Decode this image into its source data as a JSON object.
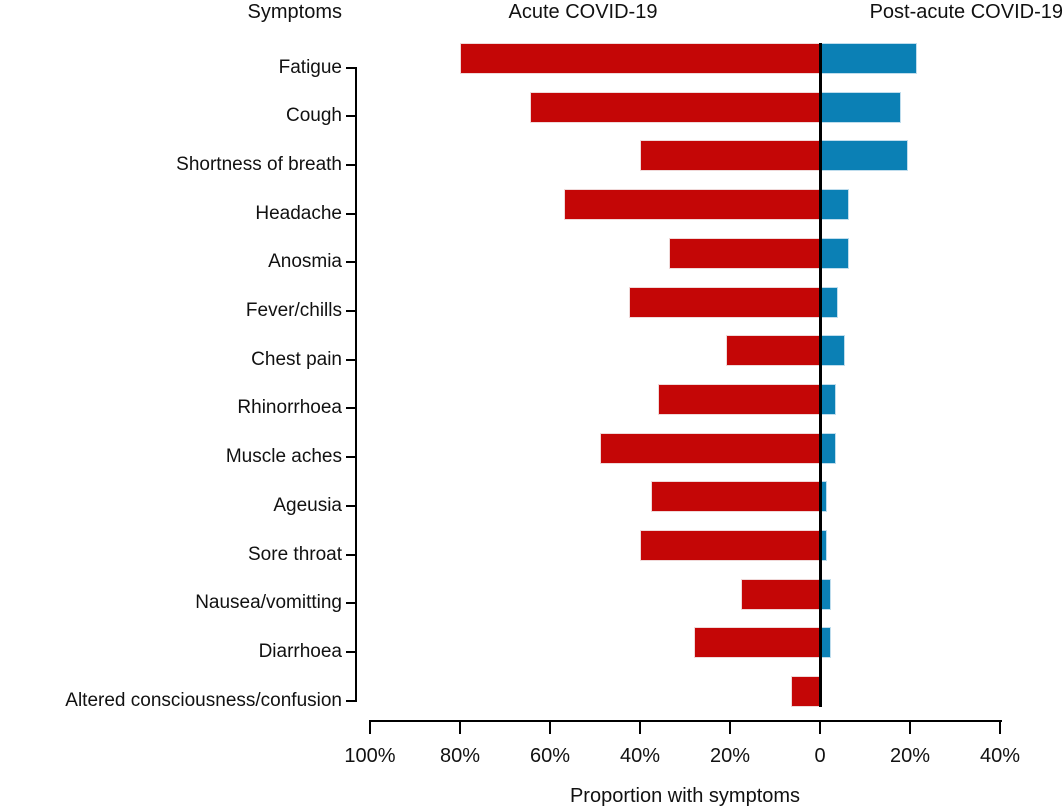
{
  "figure": {
    "column_headers": {
      "symptoms": "Symptoms",
      "acute": "Acute COVID-19",
      "post_acute": "Post-acute COVID-19"
    }
  },
  "chart_data": {
    "type": "bar",
    "variant": "diverging-horizontal",
    "title": "",
    "xlabel": "Proportion with symptoms",
    "categories": [
      "Fatigue",
      "Cough",
      "Shortness of breath",
      "Headache",
      "Anosmia",
      "Fever/chills",
      "Chest pain",
      "Rhinorrhoea",
      "Muscle aches",
      "Ageusia",
      "Sore throat",
      "Nausea/vomitting",
      "Diarrhoea",
      "Altered consciousness/confusion"
    ],
    "series": [
      {
        "name": "Acute COVID-19",
        "direction": "left",
        "unit": "%",
        "values": [
          80,
          64.5,
          40,
          57,
          33.5,
          42.5,
          21,
          36,
          49,
          37.5,
          40,
          17.5,
          28,
          6.5
        ]
      },
      {
        "name": "Post-acute COVID-19",
        "direction": "right",
        "unit": "%",
        "values": [
          21.5,
          18,
          19.5,
          6.5,
          6.5,
          4,
          5.5,
          3.5,
          3.5,
          1.5,
          1.5,
          2.5,
          2.5,
          0
        ]
      }
    ],
    "x_tick_labels": [
      "100%",
      "80%",
      "60%",
      "40%",
      "20%",
      "0",
      "20%",
      "40%"
    ],
    "x_tick_values": [
      -100,
      -80,
      -60,
      -40,
      -20,
      0,
      20,
      40
    ],
    "xlim": [
      -100,
      40
    ],
    "grid": false,
    "legend_position": "column headers above chart",
    "colors": {
      "acute": "#c40606",
      "acute_border": "#f0d9d9",
      "post_acute": "#0b80b5",
      "post_acute_border": "#bfdded",
      "axis": "#000000"
    }
  }
}
